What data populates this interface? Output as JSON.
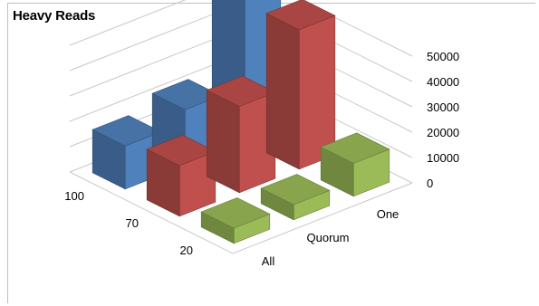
{
  "chart_data": {
    "type": "bar3d",
    "title": "Heavy Reads",
    "x_categories": [
      "All",
      "Quorum",
      "One"
    ],
    "y_categories": [
      "100",
      "70",
      "20"
    ],
    "values": [
      [
        17000,
        22000,
        63000
      ],
      [
        20000,
        34000,
        55000
      ],
      [
        6000,
        6000,
        13000
      ]
    ],
    "colors_by_row": {
      "100": "#4f81bd",
      "70": "#c0504d",
      "20": "#9bbb59"
    },
    "zlim": [
      0,
      50000
    ],
    "z_ticks": [
      "50000",
      "40000",
      "30000",
      "20000",
      "10000",
      "0"
    ],
    "grid": true,
    "legend": "none"
  }
}
